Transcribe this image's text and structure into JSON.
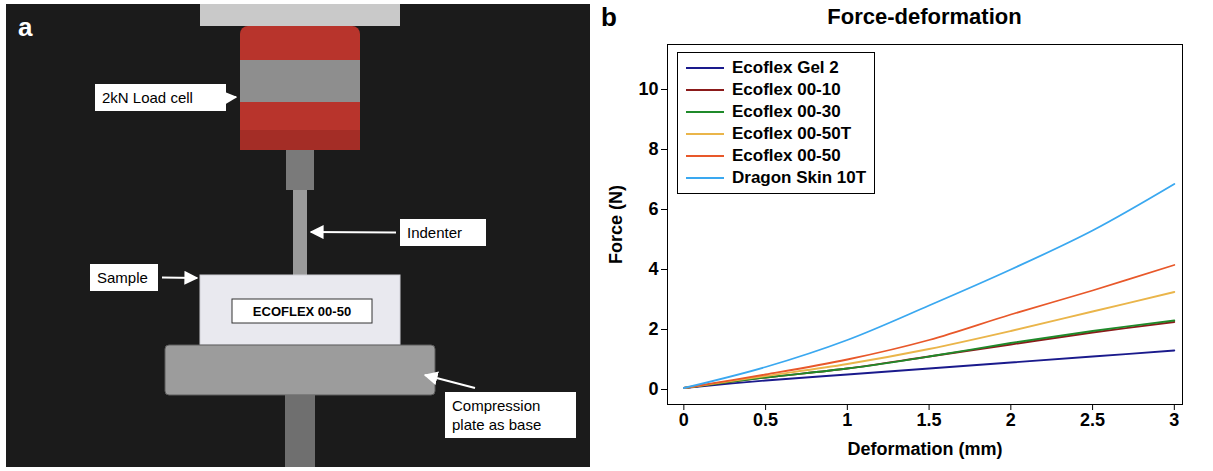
{
  "photo_panel": {
    "letter": "a",
    "sample_text": "ECOFLEX 00-50",
    "labels": {
      "load_cell": "2kN Load cell",
      "indenter": "Indenter",
      "sample": "Sample",
      "base": "Compression plate as base"
    }
  },
  "chart_data": {
    "type": "line",
    "panel_letter": "b",
    "title": "Force-deformation",
    "x_label": "Deformation (mm)",
    "y_label": "Force (N)",
    "x": [
      0,
      0.5,
      1,
      1.5,
      2,
      2.5,
      3
    ],
    "series": [
      {
        "name": "Ecoflex Gel 2",
        "color": "#1a1a8c",
        "values": [
          0.05,
          0.3,
          0.5,
          0.7,
          0.9,
          1.1,
          1.3
        ]
      },
      {
        "name": "Ecoflex 00-10",
        "color": "#8b1a1a",
        "values": [
          0.05,
          0.4,
          0.7,
          1.1,
          1.5,
          1.9,
          2.25
        ]
      },
      {
        "name": "Ecoflex 00-30",
        "color": "#1f8a2a",
        "values": [
          0.05,
          0.4,
          0.7,
          1.1,
          1.55,
          1.95,
          2.3
        ]
      },
      {
        "name": "Ecoflex 00-50T",
        "color": "#eab54a",
        "values": [
          0.05,
          0.45,
          0.85,
          1.35,
          1.95,
          2.6,
          3.25
        ]
      },
      {
        "name": "Ecoflex 00-50",
        "color": "#e8582a",
        "values": [
          0.05,
          0.5,
          1.0,
          1.65,
          2.5,
          3.3,
          4.15
        ]
      },
      {
        "name": "Dragon Skin 10T",
        "color": "#3aa8f0",
        "values": [
          0.05,
          0.75,
          1.65,
          2.8,
          4.0,
          5.3,
          6.85
        ]
      }
    ],
    "xlim": [
      -0.1,
      3.05
    ],
    "ylim": [
      -0.5,
      11.5
    ],
    "xticks": [
      0,
      0.5,
      1,
      1.5,
      2,
      2.5,
      3
    ],
    "yticks": [
      0,
      2,
      4,
      6,
      8,
      10
    ],
    "legend": "top-left",
    "grid": false
  }
}
